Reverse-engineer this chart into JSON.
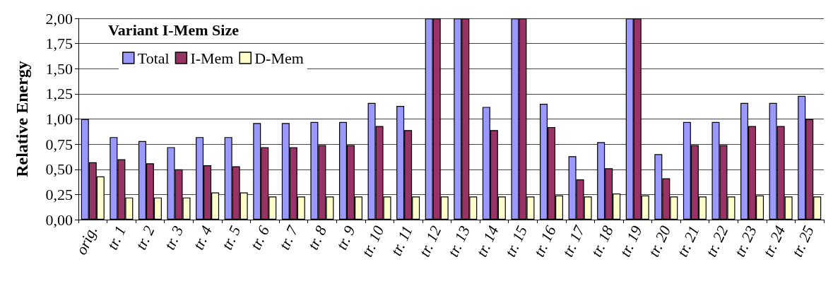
{
  "chart_data": {
    "type": "bar",
    "title": "Variant I-Mem Size",
    "ylabel": "Relative Energy",
    "categories": [
      "orig.",
      "tr. 1",
      "tr. 2",
      "tr. 3",
      "tr. 4",
      "tr. 5",
      "tr. 6",
      "tr. 7",
      "tr. 8",
      "tr. 9",
      "tr. 10",
      "tr. 11",
      "tr. 12",
      "tr. 13",
      "tr. 14",
      "tr. 15",
      "tr. 16",
      "tr. 17",
      "tr. 18",
      "tr. 19",
      "tr. 20",
      "tr. 21",
      "tr. 22",
      "tr. 23",
      "tr. 24",
      "tr. 25"
    ],
    "series": [
      {
        "name": "Total",
        "color": "#9999ff",
        "values": [
          1.0,
          0.82,
          0.78,
          0.72,
          0.82,
          0.82,
          0.96,
          0.96,
          0.97,
          0.97,
          1.16,
          1.13,
          2.0,
          2.0,
          1.12,
          2.0,
          1.15,
          0.63,
          0.77,
          2.0,
          0.65,
          0.97,
          0.97,
          1.16,
          1.16,
          1.23
        ]
      },
      {
        "name": "I-Mem",
        "color": "#993366",
        "values": [
          0.57,
          0.6,
          0.56,
          0.5,
          0.54,
          0.53,
          0.72,
          0.72,
          0.74,
          0.74,
          0.93,
          0.89,
          2.0,
          2.0,
          0.89,
          2.0,
          0.92,
          0.4,
          0.51,
          2.0,
          0.41,
          0.74,
          0.74,
          0.93,
          0.93,
          1.0
        ]
      },
      {
        "name": "D-Mem",
        "color": "#ffffcc",
        "values": [
          0.43,
          0.22,
          0.22,
          0.22,
          0.27,
          0.27,
          0.23,
          0.23,
          0.23,
          0.23,
          0.23,
          0.23,
          0.23,
          0.23,
          0.23,
          0.23,
          0.24,
          0.23,
          0.26,
          0.24,
          0.23,
          0.23,
          0.23,
          0.24,
          0.23,
          0.23
        ]
      }
    ],
    "ylim": [
      0,
      2
    ],
    "yticks": [
      {
        "value": 0,
        "label": "0,00"
      },
      {
        "value": 0.25,
        "label": "0,25"
      },
      {
        "value": 0.5,
        "label": "0,50"
      },
      {
        "value": 0.75,
        "label": "0,75"
      },
      {
        "value": 1,
        "label": "1,00"
      },
      {
        "value": 1.25,
        "label": "1,25"
      },
      {
        "value": 1.5,
        "label": "1,50"
      },
      {
        "value": 1.75,
        "label": "1,75"
      },
      {
        "value": 2,
        "label": "2,00"
      }
    ],
    "grid": "y",
    "legend": "top left"
  }
}
